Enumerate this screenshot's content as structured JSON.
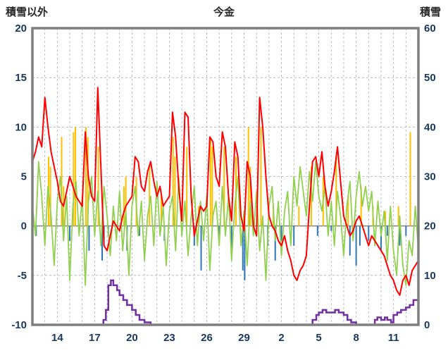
{
  "chart_data": {
    "type": "line",
    "title": "今金",
    "left_axis": {
      "label": "積雪以外",
      "min": -10,
      "max": 20,
      "ticks": [
        20,
        15,
        10,
        5,
        0,
        -5,
        -10
      ]
    },
    "right_axis": {
      "label": "積雪",
      "min": 0,
      "max": 60,
      "ticks": [
        60,
        50,
        40,
        30,
        20,
        10,
        0
      ]
    },
    "x_axis": {
      "min": 12,
      "max": 43,
      "ticks": [
        {
          "day": 14,
          "label": "14"
        },
        {
          "day": 17,
          "label": "17"
        },
        {
          "day": 20,
          "label": "20"
        },
        {
          "day": 23,
          "label": "23"
        },
        {
          "day": 26,
          "label": "26"
        },
        {
          "day": 29,
          "label": "29"
        },
        {
          "day": 32,
          "label": "2"
        },
        {
          "day": 35,
          "label": "5"
        },
        {
          "day": 38,
          "label": "8"
        },
        {
          "day": 41,
          "label": "11"
        }
      ]
    },
    "grid": {
      "vertical_step_days": 1,
      "horizontal_step_left_units": 5,
      "style": "dashed"
    },
    "colors": {
      "frame": "#7F7F7F",
      "grid": "#ADADAD",
      "zero_line": "#808080",
      "axis_text": "#17375E",
      "temperature": "#FF0000",
      "wind": "#92D050",
      "sunshine": "#FFC000",
      "precipitation": "#2E75B6",
      "snow": "#7030A0"
    },
    "series": [
      {
        "name": "sunshine-bars",
        "type": "bar-up",
        "axis": "left",
        "color": "#FFC000",
        "points": [
          [
            13.3,
            7
          ],
          [
            13.45,
            6
          ],
          [
            14.35,
            9
          ],
          [
            14.5,
            4
          ],
          [
            15.3,
            9.5
          ],
          [
            15.45,
            10
          ],
          [
            16.3,
            10
          ],
          [
            16.45,
            9
          ],
          [
            17.3,
            8
          ],
          [
            19.35,
            4
          ],
          [
            19.5,
            5
          ],
          [
            20.35,
            5
          ],
          [
            21.4,
            6
          ],
          [
            22.35,
            3
          ],
          [
            23.3,
            9
          ],
          [
            23.45,
            7
          ],
          [
            24.4,
            8
          ],
          [
            25.35,
            2
          ],
          [
            26.3,
            9
          ],
          [
            26.45,
            8
          ],
          [
            27.4,
            8
          ],
          [
            28.35,
            7
          ],
          [
            29.35,
            10
          ],
          [
            29.5,
            6
          ],
          [
            30.35,
            10
          ],
          [
            31.35,
            2
          ],
          [
            33.4,
            2
          ],
          [
            34.4,
            6
          ],
          [
            35.35,
            5
          ],
          [
            36.4,
            7
          ],
          [
            37.35,
            3
          ],
          [
            38.4,
            4
          ],
          [
            39.35,
            2
          ],
          [
            40.35,
            1.5
          ],
          [
            41.4,
            2
          ],
          [
            42.35,
            9.5
          ]
        ]
      },
      {
        "name": "precipitation-bars",
        "type": "bar-down",
        "axis": "left",
        "color": "#2E75B6",
        "points": [
          [
            12.3,
            -1
          ],
          [
            15.0,
            -1.5
          ],
          [
            16.55,
            -2.5
          ],
          [
            17.6,
            -3.5
          ],
          [
            17.75,
            -2
          ],
          [
            18.1,
            -1
          ],
          [
            19.6,
            -2.5
          ],
          [
            20.6,
            -1
          ],
          [
            22.6,
            -1.5
          ],
          [
            24.0,
            -1
          ],
          [
            25.0,
            -2
          ],
          [
            25.55,
            -4.5
          ],
          [
            27.0,
            -1
          ],
          [
            28.0,
            -2.5
          ],
          [
            28.9,
            -4.5
          ],
          [
            29.05,
            -5.5
          ],
          [
            30.9,
            -2
          ],
          [
            31.5,
            -3.5
          ],
          [
            32.0,
            -1.5
          ],
          [
            33.0,
            -2
          ],
          [
            34.9,
            -1
          ],
          [
            36.0,
            -0.5
          ],
          [
            37.5,
            -3
          ],
          [
            38.0,
            -4
          ],
          [
            38.3,
            -2
          ],
          [
            39.0,
            -1.5
          ],
          [
            40.0,
            -2.5
          ],
          [
            40.5,
            -1
          ],
          [
            41.5,
            -2
          ],
          [
            42.0,
            -1
          ]
        ]
      },
      {
        "name": "wind-line",
        "type": "line",
        "axis": "left",
        "color": "#92D050",
        "width": 1.8,
        "start": 12,
        "step": 0.25,
        "values": [
          2,
          -1,
          6.5,
          3,
          -2,
          4,
          1,
          -4,
          2.5,
          5,
          -1.5,
          3,
          -5.5,
          2,
          4.5,
          -1,
          3,
          -6,
          2.5,
          5,
          -1,
          3.5,
          -2,
          4,
          1,
          -3,
          2,
          -1.5,
          3.5,
          -2.5,
          1.5,
          -5,
          2,
          4,
          -1,
          2.5,
          -3.5,
          1,
          3,
          -2,
          4.5,
          -1,
          2,
          -4,
          1.5,
          3,
          -2.5,
          5,
          -1,
          2.5,
          -3,
          1,
          4,
          -2,
          2.5,
          -1.5,
          3,
          -4.5,
          1,
          2.5,
          -2,
          4,
          -1,
          3,
          -3.5,
          2,
          5,
          -2,
          1.5,
          -4,
          2.5,
          -1,
          3.5,
          -2.5,
          1,
          -5.5,
          2,
          4,
          -1.5,
          2.5,
          -3,
          1.5,
          3.5,
          -2,
          5,
          2,
          6,
          3.5,
          1,
          5.5,
          2.5,
          6.5,
          3,
          1.5,
          4,
          -1,
          2.5,
          -2,
          3.5,
          1,
          -3,
          2,
          4.5,
          -1.5,
          3,
          5.5,
          2,
          4,
          1.5,
          3.5,
          -2,
          2.5,
          -1,
          1.5,
          -3.5,
          2,
          -2.5,
          -5,
          1,
          -4,
          -6,
          -1.5,
          -3,
          2,
          -2.5
        ]
      },
      {
        "name": "temperature-line",
        "type": "line",
        "axis": "left",
        "color": "#FF0000",
        "width": 2,
        "start": 12,
        "step": 0.25,
        "values": [
          6.5,
          7.5,
          9,
          8,
          13,
          10,
          7.5,
          6,
          4.5,
          2.5,
          2,
          3.5,
          5,
          4,
          3,
          2.5,
          2,
          9.5,
          5,
          3,
          2.5,
          14,
          6,
          -2,
          -2.5,
          -1,
          0.5,
          0,
          -0.5,
          1,
          2,
          2.5,
          3,
          7,
          6.5,
          4,
          3.5,
          5.5,
          6.5,
          4.5,
          3,
          4,
          2,
          2.5,
          3,
          11.5,
          9,
          4,
          0.5,
          11.5,
          11,
          3,
          -1,
          0.5,
          2,
          1.5,
          2,
          9,
          8.5,
          5,
          4,
          9.5,
          8,
          3,
          0.5,
          8.5,
          7,
          1,
          -0.5,
          6.5,
          5,
          0,
          -1,
          13,
          10,
          5,
          1,
          0,
          -0.5,
          -1.5,
          -2,
          -1,
          -2.5,
          -3.5,
          -5,
          -5.5,
          -4.5,
          -4,
          -3,
          2,
          6.5,
          7,
          5,
          7.5,
          4,
          2,
          3.5,
          5.5,
          8,
          4.5,
          1,
          0,
          -1,
          -0.5,
          0.5,
          1,
          0,
          -1,
          -2,
          -1,
          -1.5,
          -2,
          -2.5,
          -3,
          -4,
          -5,
          -5.5,
          -6.5,
          -7,
          -5.5,
          -5,
          -6,
          -4.5,
          -4,
          -3.5
        ]
      },
      {
        "name": "snow-depth-step",
        "type": "step-line",
        "axis": "right",
        "color": "#7030A0",
        "width": 2.5,
        "points": [
          [
            12,
            0
          ],
          [
            17.5,
            0
          ],
          [
            17.7,
            1
          ],
          [
            17.9,
            3
          ],
          [
            18.1,
            8
          ],
          [
            18.3,
            9
          ],
          [
            18.5,
            8
          ],
          [
            18.8,
            7
          ],
          [
            19.0,
            6
          ],
          [
            19.3,
            5
          ],
          [
            19.6,
            4
          ],
          [
            20.0,
            3
          ],
          [
            20.3,
            2
          ],
          [
            20.6,
            1
          ],
          [
            21.0,
            0.5
          ],
          [
            21.5,
            0
          ],
          [
            34.3,
            0
          ],
          [
            34.5,
            1
          ],
          [
            34.8,
            2
          ],
          [
            35.0,
            2.5
          ],
          [
            35.3,
            3
          ],
          [
            35.6,
            2.5
          ],
          [
            36.0,
            2.5
          ],
          [
            36.3,
            3
          ],
          [
            36.6,
            2.5
          ],
          [
            37.0,
            2
          ],
          [
            37.3,
            1
          ],
          [
            37.6,
            0.5
          ],
          [
            38.0,
            0
          ],
          [
            39.3,
            0
          ],
          [
            39.5,
            1
          ],
          [
            39.7,
            1.5
          ],
          [
            40.0,
            1
          ],
          [
            40.3,
            1.5
          ],
          [
            40.5,
            1
          ],
          [
            40.8,
            0.5
          ],
          [
            41.0,
            2
          ],
          [
            41.3,
            2.5
          ],
          [
            41.6,
            3
          ],
          [
            42.0,
            3.5
          ],
          [
            42.3,
            4
          ],
          [
            42.6,
            5
          ],
          [
            43.0,
            5.5
          ]
        ]
      }
    ]
  }
}
